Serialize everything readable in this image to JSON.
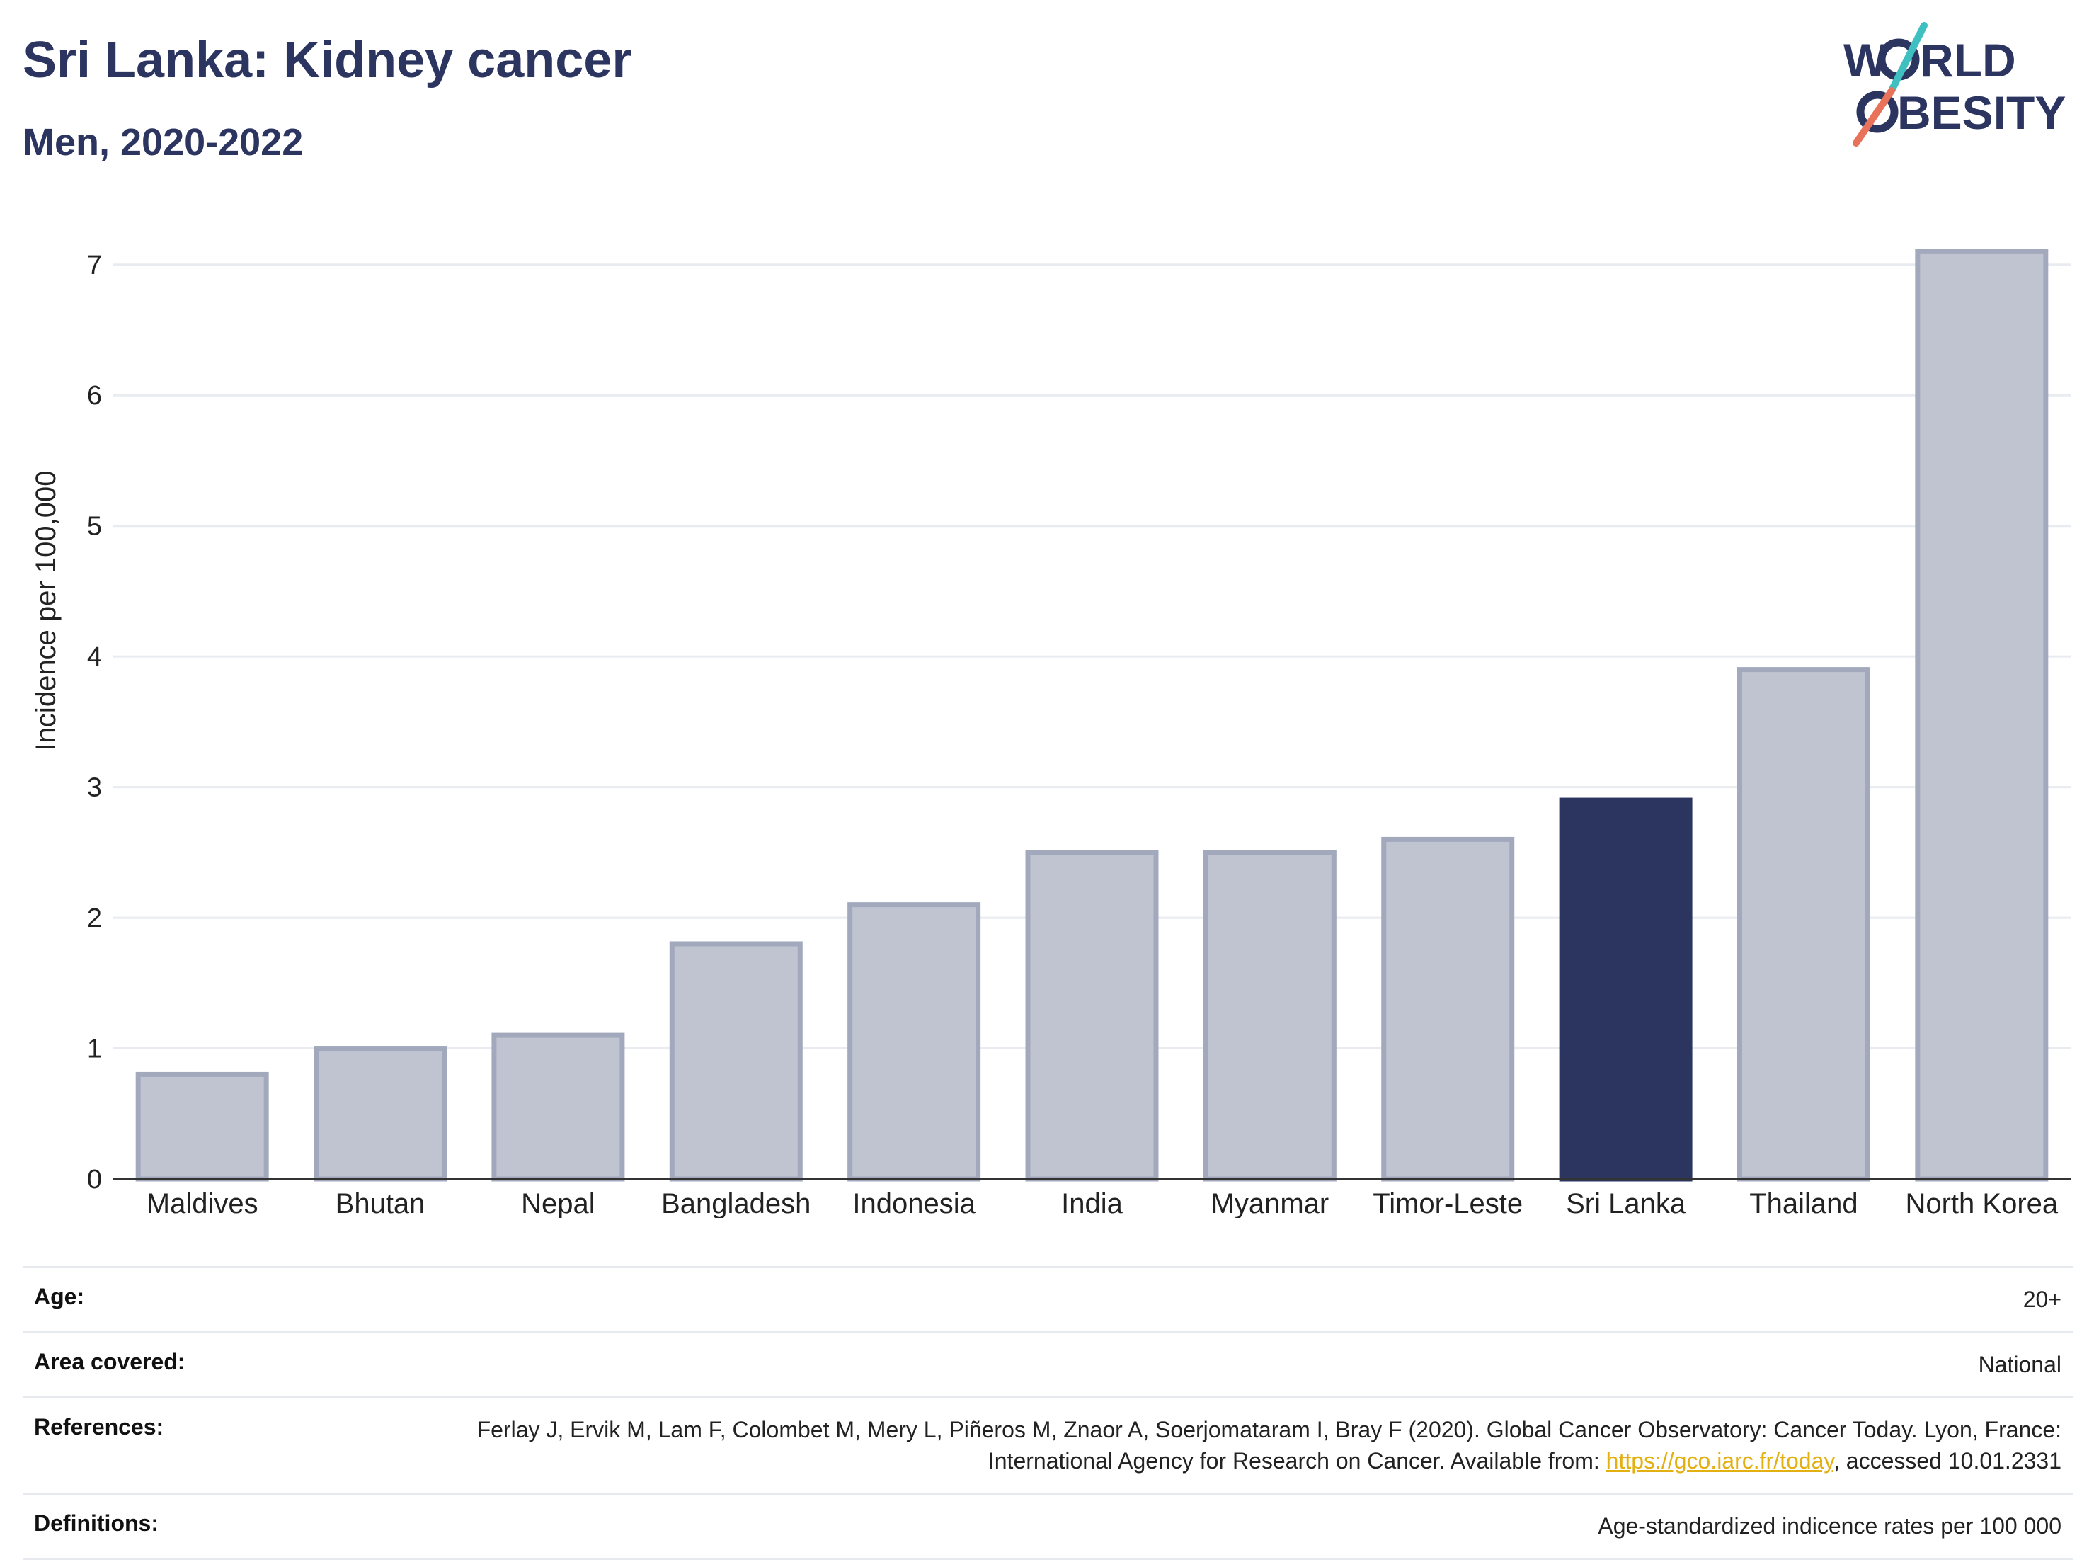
{
  "header": {
    "title": "Sri Lanka: Kidney cancer",
    "subtitle": "Men, 2020-2022"
  },
  "logo": {
    "line1_a": "W",
    "line1_b": "RLD",
    "line2": "BESITY",
    "colors": {
      "text": "#2b3560",
      "slash_top": "#3fbfc0",
      "slash_bottom": "#e8735a"
    }
  },
  "chart_data": {
    "type": "bar",
    "title": "Sri Lanka: Kidney cancer",
    "subtitle": "Men, 2020-2022",
    "xlabel": "",
    "ylabel": "Incidence per 100,000",
    "ylim": [
      0,
      7.4
    ],
    "yticks": [
      0,
      1,
      2,
      3,
      4,
      5,
      6,
      7
    ],
    "grid": true,
    "categories": [
      "Maldives",
      "Bhutan",
      "Nepal",
      "Bangladesh",
      "Indonesia",
      "India",
      "Myanmar",
      "Timor-Leste",
      "Sri Lanka",
      "Thailand",
      "North Korea"
    ],
    "values": [
      0.8,
      1.0,
      1.1,
      1.8,
      2.1,
      2.5,
      2.5,
      2.6,
      2.9,
      3.9,
      7.1
    ],
    "highlight": "Sri Lanka",
    "colors": {
      "bar": "#c0c4d1",
      "bar_border": "#a3a9bd",
      "highlight": "#2b3560",
      "grid": "#e8ebef",
      "axis": "#333333"
    }
  },
  "meta": {
    "rows": [
      {
        "key": "Age:",
        "value": "20+"
      },
      {
        "key": "Area covered:",
        "value": "National"
      },
      {
        "key": "References:",
        "value_before": "Ferlay J, Ervik M, Lam F, Colombet M, Mery L, Piñeros M, Znaor A, Soerjomataram I, Bray F (2020). Global Cancer Observatory: Cancer Today. Lyon, France: International Agency for Research on Cancer. Available from: ",
        "link": "https://gco.iarc.fr/today",
        "value_after": ", accessed 10.01.2331"
      },
      {
        "key": "Definitions:",
        "value": "Age-standardized indicence rates per 100 000"
      }
    ]
  }
}
